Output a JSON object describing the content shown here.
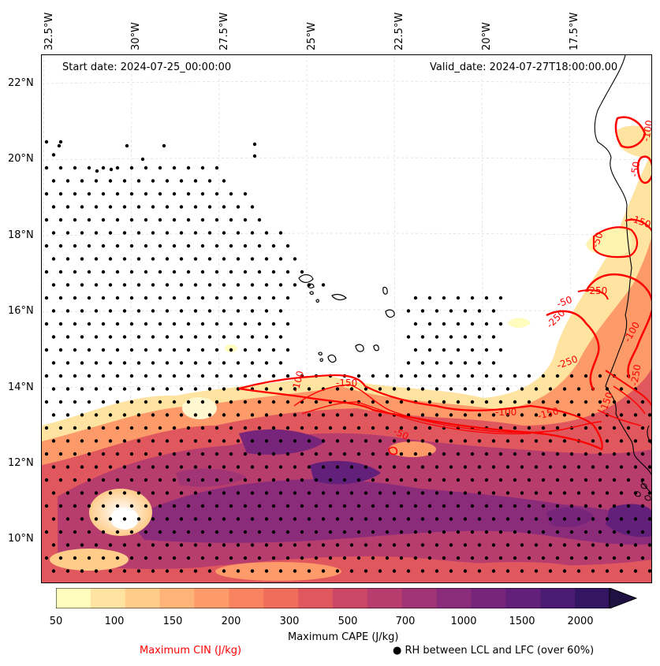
{
  "header": {
    "start_date": "Start date: 2024-07-25_00:00:00",
    "valid_date": "Valid_date: 2024-07-27T18:00:00.00"
  },
  "axes": {
    "longitudes": [
      "32.5°W",
      "30°W",
      "27.5°W",
      "25°W",
      "22.5°W",
      "20°W",
      "17.5°W"
    ],
    "latitudes": [
      "22°N",
      "20°N",
      "18°N",
      "16°N",
      "14°N",
      "12°N",
      "10°N"
    ]
  },
  "colorbar": {
    "ticks": [
      "50",
      "100",
      "150",
      "200",
      "300",
      "500",
      "700",
      "1000",
      "1500",
      "2000"
    ],
    "colors": [
      "#fffcbe",
      "#ffe4a1",
      "#ffcc8a",
      "#feb377",
      "#fd9a6a",
      "#f98360",
      "#f06c5b",
      "#e0575e",
      "#cc4766",
      "#b73d6e",
      "#a03475",
      "#8b2c7a",
      "#77257b",
      "#62207a",
      "#4b1a72",
      "#341561",
      "#1f1243"
    ],
    "label": "Maximum CAPE (J/kg)"
  },
  "legend": {
    "cin_label": "Maximum CIN (J/kg)",
    "cin_color": "#ff0000",
    "rh_label": "● RH between LCL and LFC (over 60%)"
  },
  "contour_labels": [
    "-50",
    "-100",
    "-150",
    "-250",
    "-50",
    "-100",
    "-150",
    "-250",
    "-50",
    "-150",
    "-50",
    "-100",
    "-250",
    "-150",
    "-100",
    "-250"
  ]
}
